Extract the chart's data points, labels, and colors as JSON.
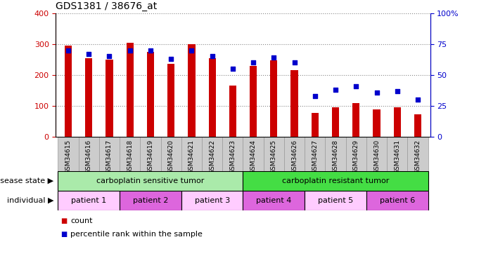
{
  "title": "GDS1381 / 38676_at",
  "samples": [
    "GSM34615",
    "GSM34616",
    "GSM34617",
    "GSM34618",
    "GSM34619",
    "GSM34620",
    "GSM34621",
    "GSM34622",
    "GSM34623",
    "GSM34624",
    "GSM34625",
    "GSM34626",
    "GSM34627",
    "GSM34628",
    "GSM34629",
    "GSM34630",
    "GSM34631",
    "GSM34632"
  ],
  "counts": [
    295,
    255,
    250,
    305,
    275,
    235,
    300,
    255,
    165,
    230,
    248,
    215,
    78,
    95,
    108,
    88,
    95,
    72
  ],
  "percentile_ranks": [
    70,
    67,
    65,
    70,
    70,
    63,
    70,
    65,
    55,
    60,
    64,
    60,
    33,
    38,
    41,
    36,
    37,
    30
  ],
  "bar_color": "#cc0000",
  "dot_color": "#0000cc",
  "ylim_left": [
    0,
    400
  ],
  "ylim_right": [
    0,
    100
  ],
  "yticks_left": [
    0,
    100,
    200,
    300,
    400
  ],
  "yticks_right": [
    0,
    25,
    50,
    75,
    100
  ],
  "ytick_labels_right": [
    "0",
    "25",
    "50",
    "75",
    "100%"
  ],
  "disease_state_groups": [
    {
      "label": "carboplatin sensitive tumor",
      "start": 0,
      "end": 9,
      "color": "#aaeaaa"
    },
    {
      "label": "carboplatin resistant tumor",
      "start": 9,
      "end": 18,
      "color": "#44dd44"
    }
  ],
  "individual_groups": [
    {
      "label": "patient 1",
      "start": 0,
      "end": 3,
      "color": "#ffccff"
    },
    {
      "label": "patient 2",
      "start": 3,
      "end": 6,
      "color": "#dd66dd"
    },
    {
      "label": "patient 3",
      "start": 6,
      "end": 9,
      "color": "#ffccff"
    },
    {
      "label": "patient 4",
      "start": 9,
      "end": 12,
      "color": "#dd66dd"
    },
    {
      "label": "patient 5",
      "start": 12,
      "end": 15,
      "color": "#ffccff"
    },
    {
      "label": "patient 6",
      "start": 15,
      "end": 18,
      "color": "#dd66dd"
    }
  ],
  "legend_items": [
    {
      "label": "count",
      "color": "#cc0000"
    },
    {
      "label": "percentile rank within the sample",
      "color": "#0000cc"
    }
  ],
  "grid_color": "#888888",
  "background_color": "#ffffff",
  "xticklabel_bg": "#cccccc",
  "left_tick_color": "#cc0000",
  "right_tick_color": "#0000cc",
  "disease_state_label": "disease state",
  "individual_label": "individual",
  "bar_width": 0.35
}
